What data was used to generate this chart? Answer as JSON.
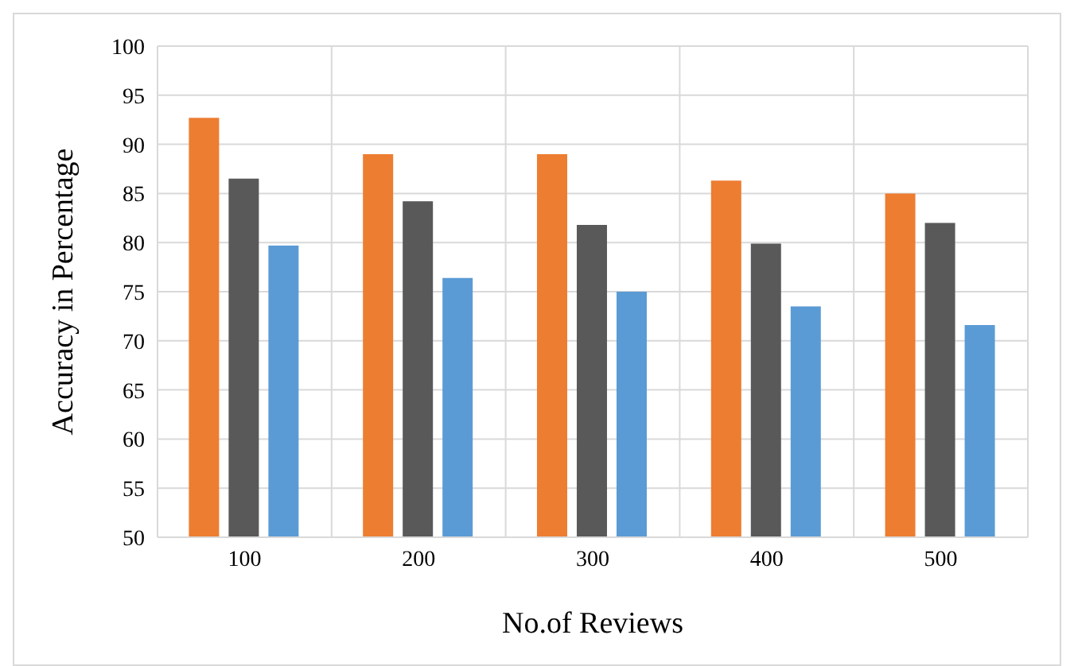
{
  "chart_data": {
    "type": "bar",
    "xlabel": "No.of Reviews",
    "ylabel": "Accuracy in Percentage",
    "categories": [
      "100",
      "200",
      "300",
      "400",
      "500"
    ],
    "series": [
      {
        "color": "#ed7d31",
        "values": [
          92.7,
          89.0,
          89.0,
          86.3,
          85.0
        ]
      },
      {
        "color": "#595959",
        "values": [
          86.5,
          84.2,
          81.8,
          79.9,
          82.0
        ]
      },
      {
        "color": "#5b9bd5",
        "values": [
          79.7,
          76.4,
          75.0,
          73.5,
          71.6
        ]
      }
    ],
    "ylim": [
      50,
      100
    ],
    "yticks": [
      50,
      55,
      60,
      65,
      70,
      75,
      80,
      85,
      90,
      95,
      100
    ],
    "grid": true
  }
}
